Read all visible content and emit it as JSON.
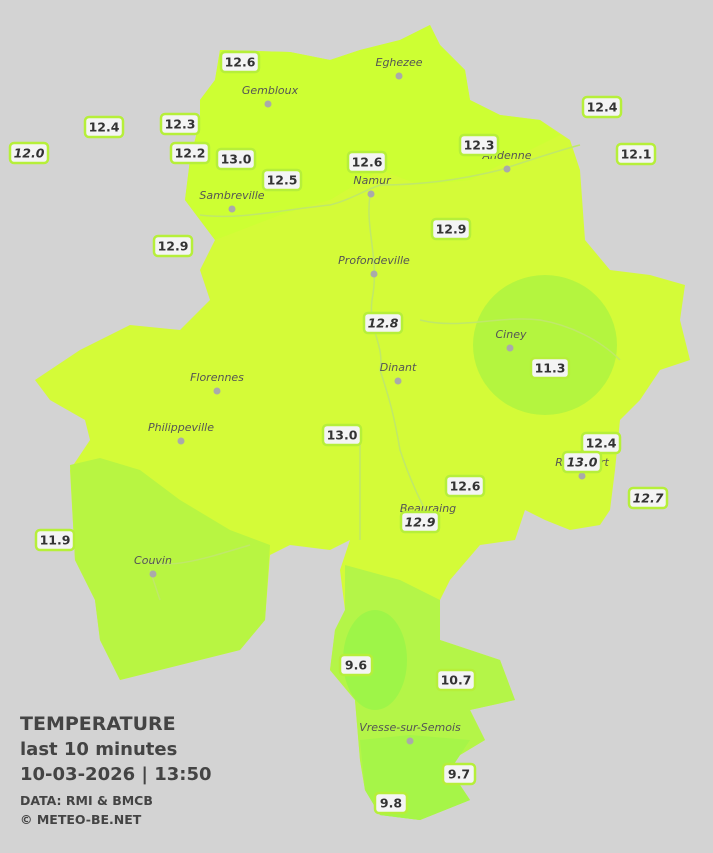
{
  "legend": {
    "title": "TEMPERATURE",
    "subtitle": "last 10 minutes",
    "datetime": "10-03-2026  |  13:50",
    "source": "DATA: RMI & BMCB",
    "copyright": "© METEO-BE.NET"
  },
  "cities": [
    "Eghezee",
    "Gembloux",
    "Andenne",
    "Namur",
    "Sambreville",
    "Profondeville",
    "Ciney",
    "Dinant",
    "Florennes",
    "Philippeville",
    "Rochefort",
    "Beauraing",
    "Couvin",
    "Vresse-sur-Semois"
  ],
  "stations": [
    {
      "value": "12.6",
      "italic": false
    },
    {
      "value": "12.4",
      "italic": false
    },
    {
      "value": "12.3",
      "italic": false
    },
    {
      "value": "12.0",
      "italic": true
    },
    {
      "value": "12.2",
      "italic": false
    },
    {
      "value": "13.0",
      "italic": false
    },
    {
      "value": "12.5",
      "italic": false
    },
    {
      "value": "12.6",
      "italic": false
    },
    {
      "value": "12.3",
      "italic": false
    },
    {
      "value": "12.4",
      "italic": false
    },
    {
      "value": "12.1",
      "italic": false
    },
    {
      "value": "12.9",
      "italic": false
    },
    {
      "value": "12.9",
      "italic": false
    },
    {
      "value": "12.8",
      "italic": true
    },
    {
      "value": "11.3",
      "italic": false
    },
    {
      "value": "13.0",
      "italic": false
    },
    {
      "value": "12.4",
      "italic": false
    },
    {
      "value": "13.0",
      "italic": true
    },
    {
      "value": "12.6",
      "italic": false
    },
    {
      "value": "12.9",
      "italic": true
    },
    {
      "value": "12.7",
      "italic": true
    },
    {
      "value": "11.9",
      "italic": false
    },
    {
      "value": "9.6",
      "italic": false
    },
    {
      "value": "10.7",
      "italic": false
    },
    {
      "value": "9.7",
      "italic": false
    },
    {
      "value": "9.8",
      "italic": false
    }
  ]
}
